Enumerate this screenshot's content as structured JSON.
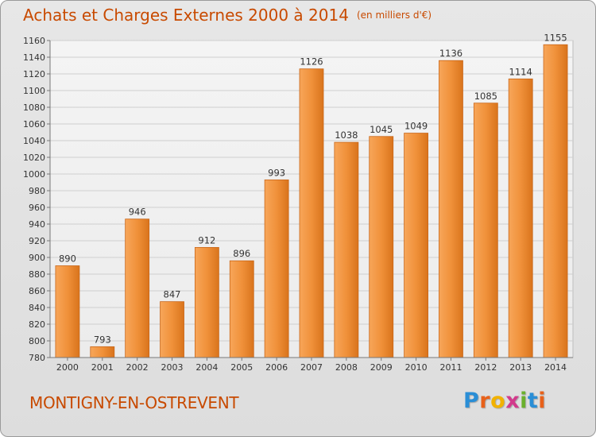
{
  "header": {
    "title": "Achats et Charges Externes 2000 à 2014",
    "unit": "(en milliers d'€)"
  },
  "footer": {
    "commune": "MONTIGNY-EN-OSTREVENT",
    "logo_letters": [
      "P",
      "r",
      "o",
      "x",
      "i",
      "t",
      "i"
    ],
    "logo_colors": [
      "#2a8ed6",
      "#e8611a",
      "#f2b200",
      "#d23a8c",
      "#6bb02e",
      "#2a8ed6",
      "#e8611a"
    ]
  },
  "chart_data": {
    "type": "bar",
    "categories": [
      "2000",
      "2001",
      "2002",
      "2003",
      "2004",
      "2005",
      "2006",
      "2007",
      "2008",
      "2009",
      "2010",
      "2011",
      "2012",
      "2013",
      "2014"
    ],
    "values": [
      890,
      793,
      946,
      847,
      912,
      896,
      993,
      1126,
      1038,
      1045,
      1049,
      1136,
      1085,
      1114,
      1155
    ],
    "ylim": [
      780,
      1160
    ],
    "yticks": [
      780,
      800,
      820,
      840,
      860,
      880,
      900,
      920,
      940,
      960,
      980,
      1000,
      1020,
      1040,
      1060,
      1080,
      1100,
      1120,
      1140,
      1160
    ],
    "grid": true,
    "bar_color": "#f0913a"
  }
}
